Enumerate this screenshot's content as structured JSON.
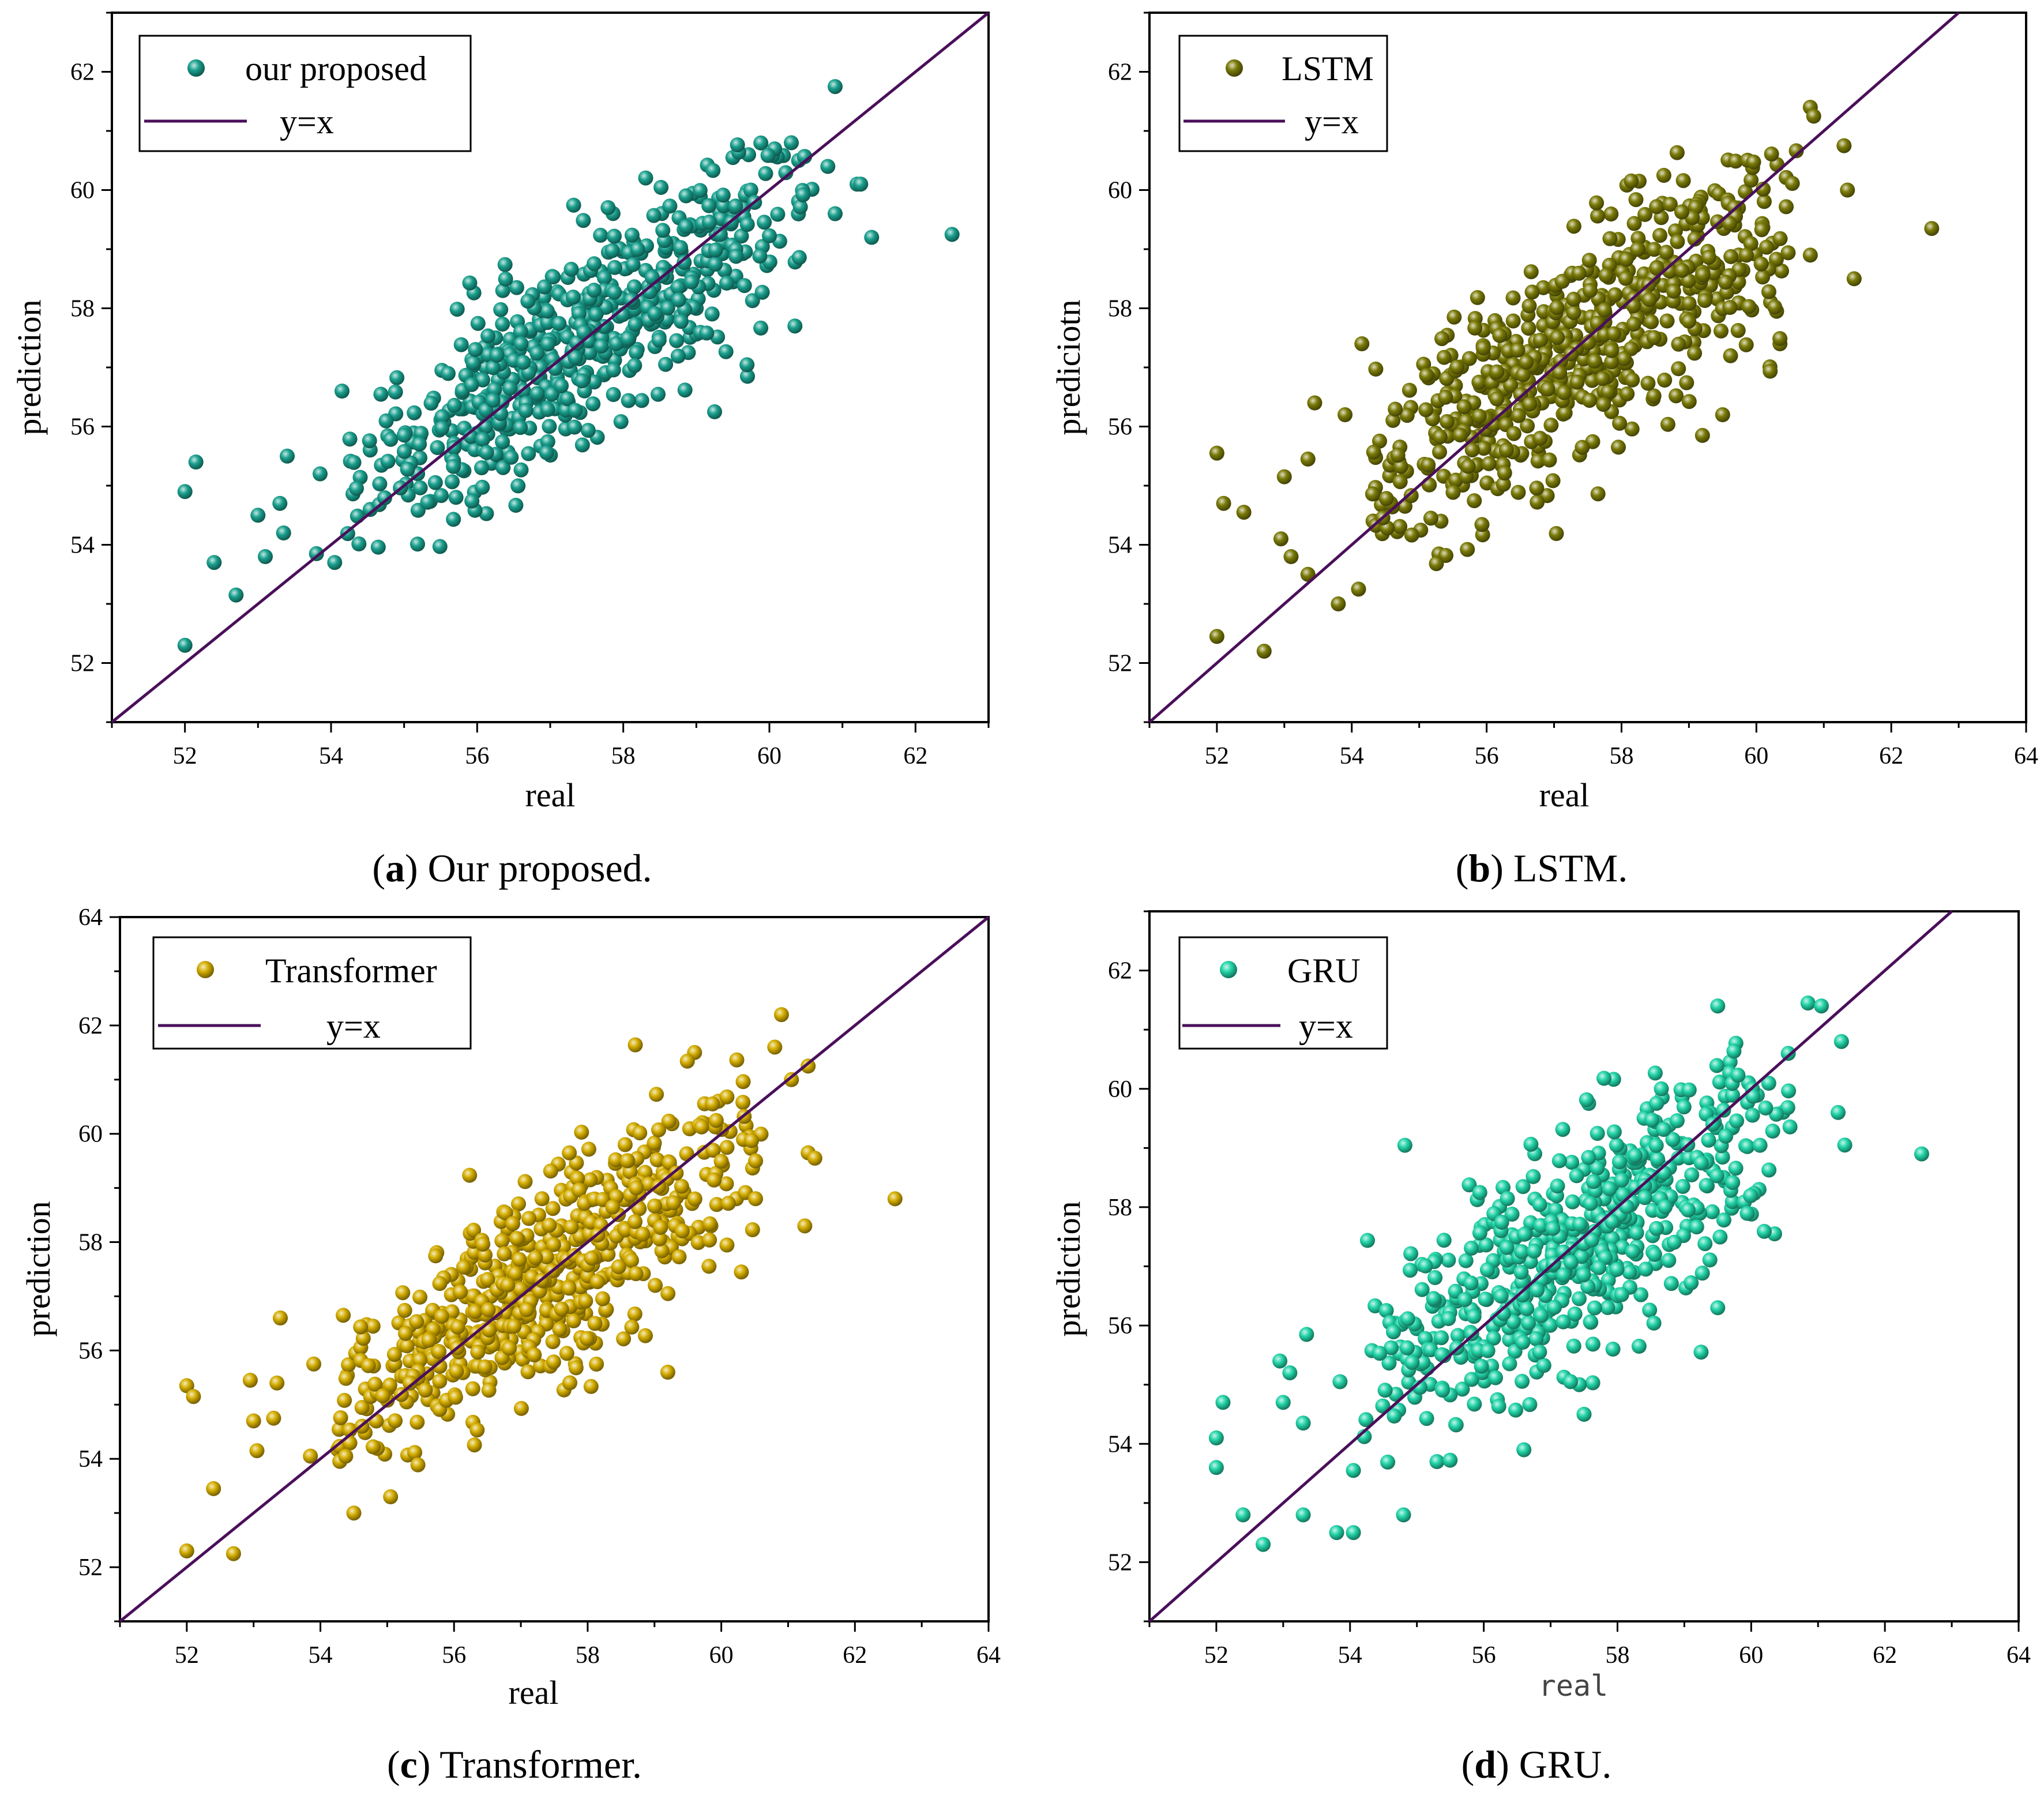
{
  "line_color": "#4a0f5a",
  "chart_data": [
    {
      "type": "scatter",
      "id": "a",
      "caption": {
        "open": "(",
        "letter": "a",
        "rest": ") Our proposed."
      },
      "legend": {
        "series_label": "our proposed",
        "line_label": "y=x"
      },
      "color": "#1aa08e",
      "xlabel": "real",
      "ylabel": "prediction",
      "xlim": [
        51,
        63
      ],
      "ylim": [
        51,
        63
      ],
      "xticks": [
        "52",
        "54",
        "56",
        "58",
        "60",
        "62"
      ],
      "yticks": [
        "52",
        "54",
        "56",
        "58",
        "60",
        "62"
      ],
      "seed": 11,
      "n": 560,
      "x_mean": 57.4,
      "x_sd": 1.75,
      "slope": 0.8,
      "intercept": 11.6,
      "noise_sd": 0.82,
      "points": [
        [
          52.0,
          52.3
        ],
        [
          52.0,
          54.9
        ],
        [
          52.15,
          55.4
        ],
        [
          52.4,
          53.7
        ],
        [
          52.7,
          53.15
        ],
        [
          53.0,
          54.5
        ],
        [
          53.1,
          53.8
        ],
        [
          53.3,
          54.7
        ],
        [
          53.35,
          54.2
        ],
        [
          53.4,
          55.5
        ],
        [
          53.8,
          53.85
        ],
        [
          53.85,
          55.2
        ],
        [
          54.05,
          53.7
        ],
        [
          54.15,
          56.6
        ],
        [
          60.9,
          61.75
        ],
        [
          61.4,
          59.2
        ],
        [
          62.5,
          59.25
        ],
        [
          60.3,
          60.8
        ],
        [
          60.4,
          60.5
        ],
        [
          60.8,
          60.4
        ],
        [
          61.2,
          60.1
        ],
        [
          61.25,
          60.1
        ],
        [
          60.9,
          59.6
        ],
        [
          59.5,
          60.55
        ],
        [
          56.35,
          58.3
        ],
        [
          60.35,
          57.7
        ],
        [
          59.7,
          56.85
        ],
        [
          59.25,
          56.25
        ]
      ]
    },
    {
      "type": "scatter",
      "id": "b",
      "caption": {
        "open": "(",
        "letter": "b",
        "rest": ") LSTM."
      },
      "legend": {
        "series_label": "LSTM",
        "line_label": "y=x"
      },
      "color": "#7a7a08",
      "xlabel": "real",
      "ylabel": "prediciotn",
      "xlim": [
        51,
        64
      ],
      "ylim": [
        51,
        63
      ],
      "xticks": [
        "52",
        "54",
        "56",
        "58",
        "60",
        "62",
        "64"
      ],
      "yticks": [
        "52",
        "54",
        "56",
        "58",
        "60",
        "62"
      ],
      "seed": 22,
      "n": 600,
      "x_mean": 57.4,
      "x_sd": 1.75,
      "slope": 0.75,
      "intercept": 14.3,
      "noise_sd": 0.9,
      "points": [
        [
          52.0,
          52.45
        ],
        [
          52.0,
          55.55
        ],
        [
          52.1,
          54.7
        ],
        [
          52.4,
          54.55
        ],
        [
          52.7,
          52.2
        ],
        [
          52.95,
          54.1
        ],
        [
          53.0,
          55.15
        ],
        [
          53.1,
          53.8
        ],
        [
          53.35,
          53.5
        ],
        [
          53.35,
          55.45
        ],
        [
          53.45,
          56.4
        ],
        [
          53.8,
          53.0
        ],
        [
          53.9,
          56.2
        ],
        [
          54.1,
          53.25
        ],
        [
          54.15,
          57.4
        ],
        [
          60.8,
          61.4
        ],
        [
          60.85,
          61.25
        ],
        [
          61.3,
          60.75
        ],
        [
          61.35,
          60.0
        ],
        [
          61.45,
          58.5
        ],
        [
          62.6,
          59.35
        ],
        [
          60.8,
          58.9
        ],
        [
          60.35,
          57.4
        ],
        [
          60.3,
          57.95
        ],
        [
          59.5,
          56.2
        ],
        [
          59.2,
          55.85
        ]
      ]
    },
    {
      "type": "scatter",
      "id": "c",
      "caption": {
        "open": "(",
        "letter": "c",
        "rest": ") Transformer."
      },
      "legend": {
        "series_label": "Transformer",
        "line_label": "y=x"
      },
      "color": "#d4ad00",
      "xlabel": "real",
      "ylabel": "prediction",
      "xlim": [
        51,
        64
      ],
      "ylim": [
        51,
        64
      ],
      "xticks": [
        "52",
        "54",
        "56",
        "58",
        "60",
        "62",
        "64"
      ],
      "yticks": [
        "52",
        "54",
        "56",
        "58",
        "60",
        "62",
        "64"
      ],
      "seed": 33,
      "n": 600,
      "x_mean": 57.4,
      "x_sd": 1.75,
      "slope": 0.78,
      "intercept": 12.6,
      "noise_sd": 0.9,
      "points": [
        [
          52.0,
          52.3
        ],
        [
          52.0,
          55.35
        ],
        [
          52.1,
          55.15
        ],
        [
          52.4,
          53.45
        ],
        [
          52.7,
          52.25
        ],
        [
          52.95,
          55.45
        ],
        [
          53.0,
          54.7
        ],
        [
          53.05,
          54.15
        ],
        [
          53.3,
          54.75
        ],
        [
          53.35,
          55.4
        ],
        [
          53.4,
          56.6
        ],
        [
          53.85,
          54.05
        ],
        [
          53.9,
          55.75
        ],
        [
          54.5,
          53.0
        ],
        [
          55.05,
          53.3
        ],
        [
          60.9,
          62.2
        ],
        [
          60.8,
          61.6
        ],
        [
          61.3,
          61.25
        ],
        [
          61.05,
          61.0
        ],
        [
          61.3,
          59.65
        ],
        [
          61.4,
          59.55
        ],
        [
          61.25,
          58.3
        ],
        [
          62.6,
          58.8
        ],
        [
          60.3,
          57.45
        ],
        [
          59.6,
          61.5
        ],
        [
          59.2,
          55.6
        ]
      ]
    },
    {
      "type": "scatter",
      "id": "d",
      "caption": {
        "open": "(",
        "letter": "d",
        "rest": ") GRU."
      },
      "legend": {
        "series_label": "GRU",
        "line_label": "y=x"
      },
      "color": "#22d4a8",
      "xlabel": "real",
      "ylabel": "prediction",
      "xlabel_mono": true,
      "xlim": [
        51,
        64
      ],
      "ylim": [
        51,
        63
      ],
      "xticks": [
        "52",
        "54",
        "56",
        "58",
        "60",
        "62",
        "64"
      ],
      "yticks": [
        "52",
        "54",
        "56",
        "58",
        "60",
        "62"
      ],
      "seed": 44,
      "n": 600,
      "x_mean": 57.4,
      "x_sd": 1.75,
      "slope": 0.75,
      "intercept": 14.3,
      "noise_sd": 0.95,
      "points": [
        [
          52.0,
          54.1
        ],
        [
          52.0,
          53.6
        ],
        [
          52.1,
          54.7
        ],
        [
          52.4,
          52.8
        ],
        [
          52.7,
          52.3
        ],
        [
          52.95,
          55.4
        ],
        [
          53.0,
          54.7
        ],
        [
          53.1,
          55.2
        ],
        [
          53.3,
          54.35
        ],
        [
          53.3,
          52.8
        ],
        [
          53.35,
          55.85
        ],
        [
          53.8,
          52.5
        ],
        [
          53.85,
          55.05
        ],
        [
          54.05,
          52.5
        ],
        [
          54.05,
          53.55
        ],
        [
          60.85,
          61.45
        ],
        [
          61.05,
          61.4
        ],
        [
          61.35,
          60.8
        ],
        [
          61.4,
          59.05
        ],
        [
          61.3,
          59.6
        ],
        [
          62.55,
          58.9
        ],
        [
          60.35,
          57.55
        ],
        [
          59.25,
          55.55
        ],
        [
          59.5,
          56.3
        ],
        [
          57.5,
          54.5
        ],
        [
          56.6,
          53.9
        ],
        [
          55.3,
          53.7
        ],
        [
          54.8,
          52.8
        ],
        [
          59.5,
          61.4
        ]
      ]
    }
  ]
}
